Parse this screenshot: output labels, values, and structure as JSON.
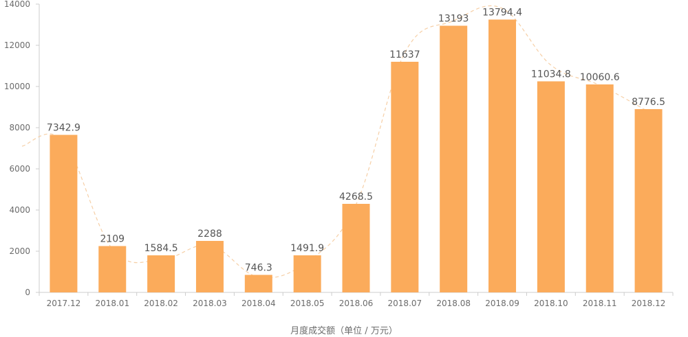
{
  "chart_data": {
    "type": "bar",
    "categories": [
      "2017.12",
      "2018.01",
      "2018.02",
      "2018.03",
      "2018.04",
      "2018.05",
      "2018.06",
      "2018.07",
      "2018.08",
      "2018.09",
      "2018.10",
      "2018.11",
      "2018.12"
    ],
    "series": [
      {
        "values": [
          7342.9,
          2109,
          1584.5,
          2288,
          746.3,
          1491.9,
          4268.5,
          11637,
          13193,
          13794.4,
          11034.8,
          10060.6,
          8776.5
        ]
      }
    ],
    "data_labels": [
      "7342.9",
      "2109",
      "1584.5",
      "2288",
      "746.3",
      "1491.9",
      "4268.5",
      "11637",
      "13193",
      "13794.4",
      "11034.8",
      "10060.6",
      "8776.5"
    ],
    "bar_heights": [
      7650,
      2250,
      1800,
      2500,
      850,
      1800,
      4300,
      11200,
      12950,
      13250,
      10250,
      10100,
      8900
    ],
    "xlabel": "月度成交额（单位 / 万元）",
    "ylabel": "",
    "ylim": [
      0,
      14000
    ],
    "yticks": [
      0,
      2000,
      4000,
      6000,
      8000,
      10000,
      12000,
      14000
    ],
    "trend_line": true,
    "grid": false,
    "colors": {
      "bar": "#fbab5b",
      "trend": "#f6cfa6",
      "axis": "#cccccc",
      "text": "#6b6b6b"
    }
  }
}
